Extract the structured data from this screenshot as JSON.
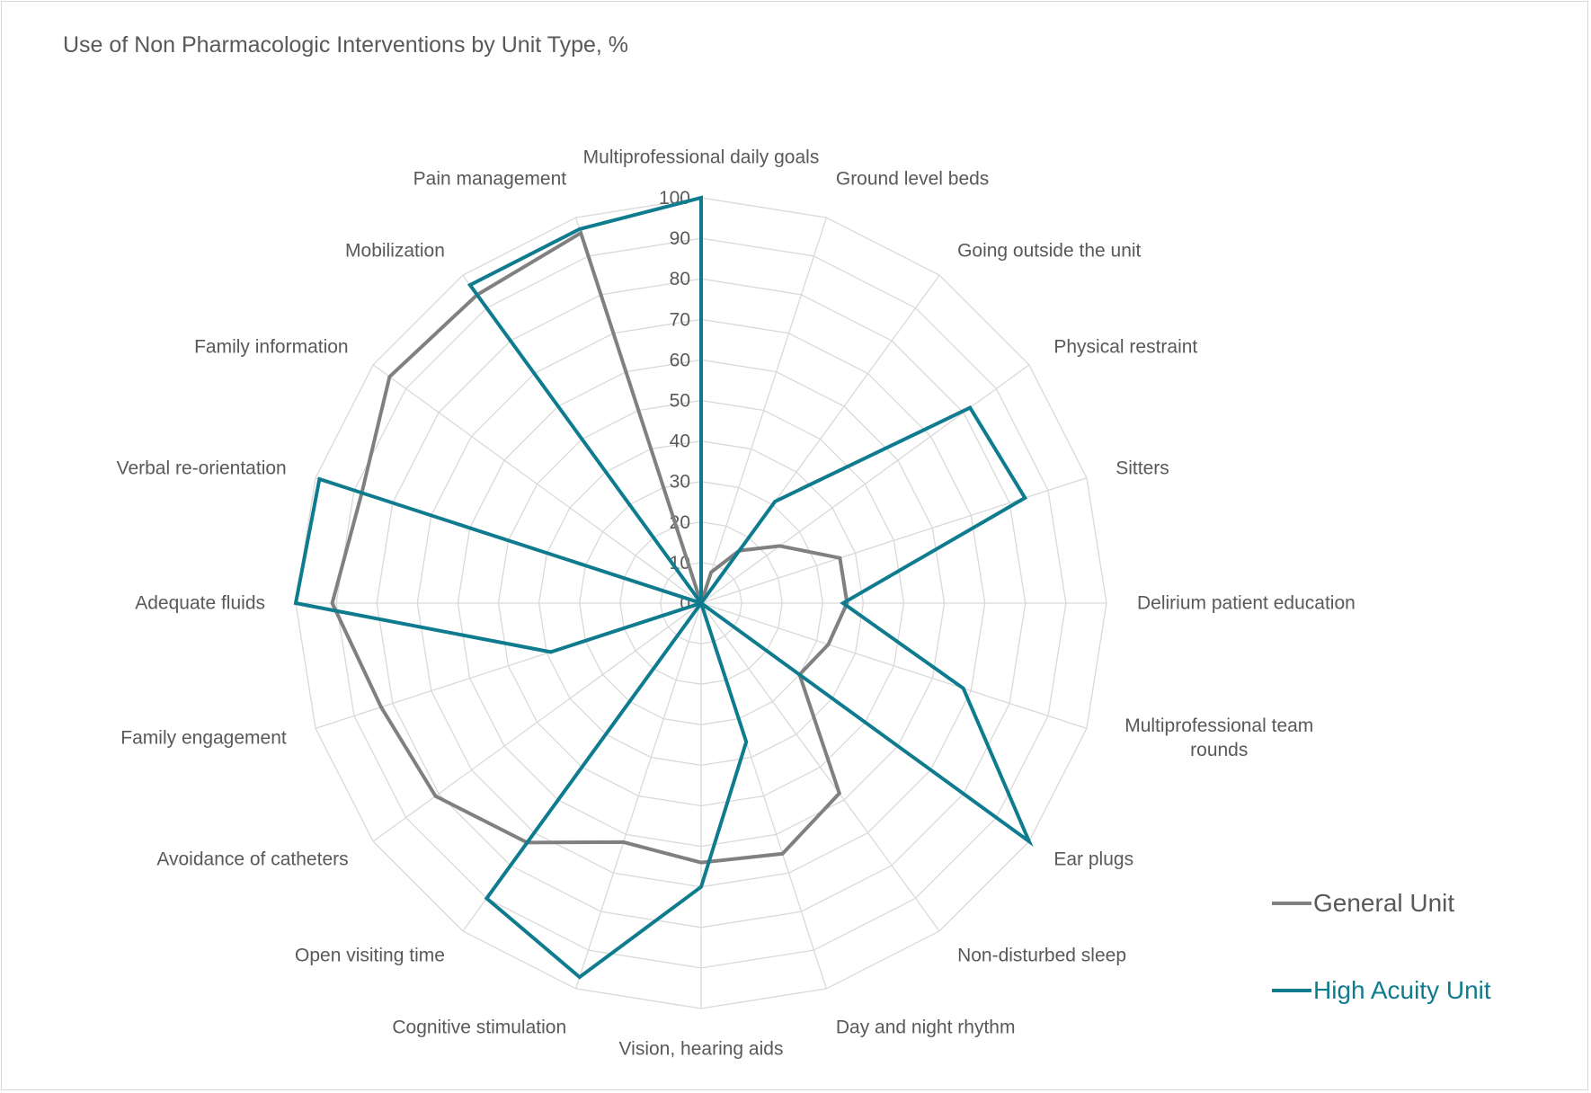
{
  "chart_data": {
    "type": "radar",
    "title": "Use of Non Pharmacologic Interventions by Unit Type, %",
    "categories": [
      "Multiprofessional daily goals",
      "Ground level beds",
      "Going outside the unit",
      "Physical restraint",
      "Sitters",
      "Delirium patient education",
      "Multiprofessional team rounds",
      "Ear plugs",
      "Non-disturbed sleep",
      "Day and night rhythm",
      "Vision, hearing aids",
      "Cognitive stimulation",
      "Open visiting time",
      "Avoidance of catheters",
      "Family engagement",
      "Adequate fluids",
      "Verbal re-orientation",
      "Family information",
      "Mobilization",
      "Pain management"
    ],
    "series": [
      {
        "name": "General Unit",
        "color": "#808080",
        "values": [
          0,
          8,
          16,
          24,
          36,
          36,
          33,
          30,
          58,
          65,
          64,
          62,
          73,
          81,
          83,
          91,
          88,
          95,
          94,
          96
        ]
      },
      {
        "name": "High Acuity Unit",
        "color": "#0e7c8e",
        "values": [
          100,
          0,
          31,
          82,
          84,
          35,
          68,
          100,
          0,
          36,
          70,
          97,
          90,
          0,
          39,
          100,
          99,
          0,
          97,
          97
        ]
      }
    ],
    "rlim": [
      0,
      100
    ],
    "rticks": [
      "0",
      "10",
      "20",
      "30",
      "40",
      "50",
      "60",
      "70",
      "80",
      "90",
      "100"
    ],
    "grid": true,
    "legend_position": "bottom-right"
  }
}
